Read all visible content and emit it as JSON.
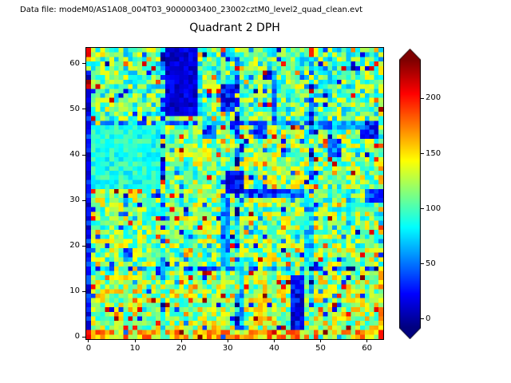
{
  "figure": {
    "caption": "Data file: modeM0/AS1A08_004T03_9000003400_23002cztM0_level2_quad_clean.evt",
    "background": "#ffffff"
  },
  "chart_data": {
    "type": "heatmap",
    "title": "Quadrant 2 DPH",
    "xlabel": "",
    "ylabel": "",
    "grid": {
      "nx": 64,
      "ny": 64
    },
    "x_range": [
      -0.5,
      63.5
    ],
    "y_range": [
      -0.5,
      63.5
    ],
    "x_ticks": [
      0,
      10,
      20,
      30,
      40,
      50,
      60
    ],
    "y_ticks": [
      0,
      10,
      20,
      30,
      40,
      50,
      60
    ],
    "grid_lines": false,
    "legend": false,
    "colormap": "jet",
    "vmin": -8,
    "vmax": 235,
    "colorbar": {
      "position": "right",
      "ticks": [
        0,
        50,
        100,
        150,
        200
      ],
      "extend": "both",
      "under_color": "#000080",
      "over_color": "#800000"
    },
    "values_spec": {
      "seed": 20,
      "base": 115,
      "noise": 42,
      "high_speckle": {
        "prob": 0.05,
        "min": 160,
        "max": 232
      },
      "low_speckle": {
        "prob": 0.05,
        "min": 0,
        "max": 70
      },
      "seam_cols": [
        16,
        32,
        48
      ],
      "seam_rows": [
        15,
        47
      ],
      "seam_prob": 0.75,
      "seam_delta": -55,
      "regions": [
        {
          "x0": 0,
          "x1": 63,
          "y0": 0,
          "y1": 13,
          "add": 10
        },
        {
          "x0": 1,
          "x1": 63,
          "y0": 48,
          "y1": 63,
          "add": -10
        },
        {
          "x0": 0,
          "x1": 63,
          "y0": 0,
          "y1": 1,
          "add": 28
        },
        {
          "x0": 63,
          "x1": 63,
          "y0": 0,
          "y1": 63,
          "add": 16
        },
        {
          "x0": 0,
          "x1": 0,
          "y0": 2,
          "y1": 58,
          "set": [
            0,
            48
          ]
        },
        {
          "x0": 17,
          "x1": 23,
          "y0": 49,
          "y1": 63,
          "set": [
            0,
            28
          ]
        },
        {
          "x0": 29,
          "x1": 31,
          "y0": 50,
          "y1": 55,
          "set": [
            4,
            50
          ]
        },
        {
          "x0": 1,
          "x1": 15,
          "y0": 33,
          "y1": 46,
          "set": [
            72,
            108
          ]
        },
        {
          "x0": 30,
          "x1": 33,
          "y0": 32,
          "y1": 36,
          "set": [
            0,
            42
          ]
        },
        {
          "x0": 29,
          "x1": 30,
          "y0": 16,
          "y1": 31,
          "set": [
            25,
            85
          ]
        },
        {
          "x0": 33,
          "x1": 33,
          "y0": 2,
          "y1": 15,
          "set": [
            25,
            85
          ]
        },
        {
          "x0": 44,
          "x1": 46,
          "y0": 2,
          "y1": 13,
          "set": [
            0,
            45
          ]
        },
        {
          "x0": 59,
          "x1": 62,
          "y0": 44,
          "y1": 47,
          "set": [
            0,
            52
          ]
        },
        {
          "x0": 60,
          "x1": 63,
          "y0": 30,
          "y1": 32,
          "set": [
            12,
            62
          ]
        },
        {
          "x0": 36,
          "x1": 38,
          "y0": 44,
          "y1": 47,
          "set": [
            12,
            62
          ]
        },
        {
          "x0": 40,
          "x1": 40,
          "y0": 48,
          "y1": 58,
          "set": [
            25,
            85
          ]
        },
        {
          "x0": 25,
          "x1": 27,
          "y0": 44,
          "y1": 46,
          "set": [
            15,
            70
          ]
        },
        {
          "x0": 52,
          "x1": 54,
          "y0": 40,
          "y1": 43,
          "set": [
            18,
            75
          ]
        },
        {
          "x0": 8,
          "x1": 9,
          "y0": 17,
          "y1": 19,
          "set": [
            22,
            72
          ]
        },
        {
          "x0": 34,
          "x1": 46,
          "y0": 31,
          "y1": 32,
          "set": [
            12,
            70
          ]
        },
        {
          "x0": 50,
          "x1": 59,
          "y0": 46,
          "y1": 47,
          "set": [
            25,
            85
          ]
        },
        {
          "x0": 47,
          "x1": 48,
          "y0": 16,
          "y1": 30,
          "set": [
            45,
            105
          ]
        },
        {
          "x0": 0,
          "x1": 0,
          "y0": 62,
          "y1": 63,
          "set": [
            205,
            232
          ]
        },
        {
          "x0": 0,
          "x1": 0,
          "y0": 55,
          "y1": 56,
          "set": [
            205,
            232
          ]
        },
        {
          "x0": 0,
          "x1": 0,
          "y0": 0,
          "y1": 1,
          "set": [
            185,
            225
          ]
        },
        {
          "x0": 48,
          "x1": 48,
          "y0": 62,
          "y1": 63,
          "set": [
            180,
            230
          ]
        }
      ]
    }
  }
}
